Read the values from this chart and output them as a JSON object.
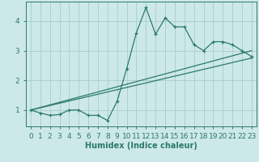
{
  "title": "",
  "xlabel": "Humidex (Indice chaleur)",
  "background_color": "#cde8e8",
  "grid_color": "#aed0d0",
  "line_color": "#2a7a6a",
  "xlim": [
    -0.5,
    23.5
  ],
  "ylim": [
    0.45,
    4.65
  ],
  "xticks": [
    0,
    1,
    2,
    3,
    4,
    5,
    6,
    7,
    8,
    9,
    10,
    11,
    12,
    13,
    14,
    15,
    16,
    17,
    18,
    19,
    20,
    21,
    22,
    23
  ],
  "yticks": [
    1,
    2,
    3,
    4
  ],
  "data_x": [
    0,
    1,
    2,
    3,
    4,
    5,
    6,
    7,
    8,
    9,
    10,
    11,
    12,
    13,
    14,
    15,
    16,
    17,
    18,
    19,
    20,
    21,
    22,
    23
  ],
  "data_y": [
    1.0,
    0.9,
    0.82,
    0.85,
    1.0,
    1.0,
    0.82,
    0.82,
    0.65,
    1.3,
    2.4,
    3.6,
    4.45,
    3.55,
    4.1,
    3.8,
    3.8,
    3.2,
    3.0,
    3.3,
    3.3,
    3.2,
    3.0,
    2.8
  ],
  "line1_x": [
    0,
    23
  ],
  "line1_y": [
    1.0,
    2.75
  ],
  "line2_x": [
    0,
    23
  ],
  "line2_y": [
    1.0,
    3.0
  ],
  "font_size_xlabel": 7,
  "font_size_ticks": 6.5
}
